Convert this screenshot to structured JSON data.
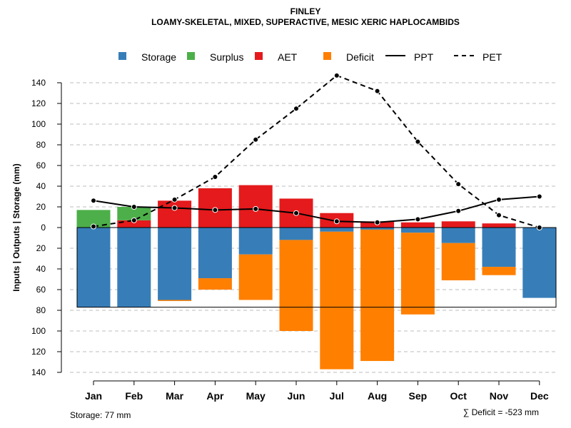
{
  "chart_data": {
    "type": "bar",
    "title": "FINLEY",
    "subtitle": "LOAMY-SKELETAL, MIXED, SUPERACTIVE, MESIC XERIC HAPLOCAMBIDS",
    "ylabel": "Inputs | Outputs | Storage   (mm)",
    "categories": [
      "Jan",
      "Feb",
      "Mar",
      "Apr",
      "May",
      "Jun",
      "Jul",
      "Aug",
      "Sep",
      "Oct",
      "Nov",
      "Dec"
    ],
    "ylim_top": [
      0,
      140
    ],
    "ylim_bottom": [
      0,
      140
    ],
    "yticks": [
      140,
      120,
      100,
      80,
      60,
      40,
      20,
      0,
      20,
      40,
      60,
      80,
      100,
      120,
      140
    ],
    "legend": {
      "storage": "Storage",
      "surplus": "Surplus",
      "aet": "AET",
      "deficit": "Deficit",
      "ppt": "PPT",
      "pet": "PET"
    },
    "colors": {
      "storage": "#377EB8",
      "surplus": "#4DAF4A",
      "aet": "#E41A1C",
      "deficit": "#FF7F00",
      "line": "#000000",
      "grid": "#bdbdbd"
    },
    "series": {
      "storage": [
        77,
        77,
        70,
        49,
        26,
        12,
        4,
        2,
        5,
        15,
        38,
        68
      ],
      "surplus": [
        17,
        13,
        0,
        0,
        0,
        0,
        0,
        0,
        0,
        0,
        0,
        0
      ],
      "aet": [
        0,
        7,
        26,
        38,
        41,
        28,
        14,
        6,
        5,
        6,
        4,
        0
      ],
      "deficit": [
        0,
        0,
        1,
        11,
        44,
        88,
        133,
        127,
        79,
        36,
        8,
        0
      ],
      "ppt": [
        26,
        20,
        19,
        17,
        18,
        14,
        6,
        5,
        8,
        16,
        27,
        30
      ],
      "pet": [
        1,
        7,
        27,
        49,
        85,
        115,
        147,
        132,
        83,
        42,
        12,
        0
      ]
    },
    "storage_capacity": 77,
    "storage_note": "Storage: 77 mm",
    "deficit_note": "∑ Deficit = -523 mm"
  }
}
